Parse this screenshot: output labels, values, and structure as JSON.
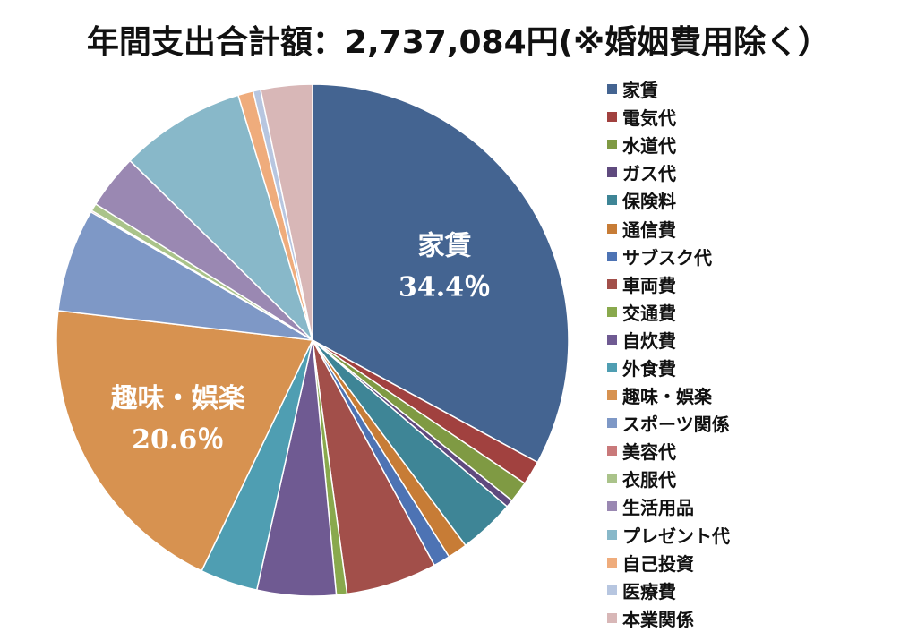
{
  "chart_data": {
    "type": "pie",
    "title": "年間支出合計額：2,737,084円(※婚姻費用除く）",
    "start_angle_deg": 0,
    "direction": "clockwise",
    "legend_position": "right",
    "slices": [
      {
        "name": "家賃",
        "percent": 34.4,
        "color": "#446491",
        "label": "家賃",
        "value_label": "34.4％"
      },
      {
        "name": "電気代",
        "percent": 1.6,
        "color": "#a1413f",
        "label": "",
        "value_label": ""
      },
      {
        "name": "水道代",
        "percent": 1.4,
        "color": "#7f9a43",
        "label": "",
        "value_label": ""
      },
      {
        "name": "ガス代",
        "percent": 0.5,
        "color": "#5f4a7e",
        "label": "",
        "value_label": ""
      },
      {
        "name": "保険料",
        "percent": 3.7,
        "color": "#3e8596",
        "label": "",
        "value_label": ""
      },
      {
        "name": "通信費",
        "percent": 1.3,
        "color": "#c77c36",
        "label": "",
        "value_label": ""
      },
      {
        "name": "サブスク代",
        "percent": 1.1,
        "color": "#4d73b4",
        "label": "",
        "value_label": ""
      },
      {
        "name": "車両費",
        "percent": 6.0,
        "color": "#a24f4a",
        "label": "",
        "value_label": ""
      },
      {
        "name": "交通費",
        "percent": 0.7,
        "color": "#89a94d",
        "label": "",
        "value_label": ""
      },
      {
        "name": "自炊費",
        "percent": 5.2,
        "color": "#6f5a92",
        "label": "",
        "value_label": ""
      },
      {
        "name": "外食費",
        "percent": 3.8,
        "color": "#4f9eb2",
        "label": "",
        "value_label": ""
      },
      {
        "name": "趣味・娯楽",
        "percent": 20.6,
        "color": "#d79250",
        "label": "趣味・娯楽",
        "value_label": "20.6％"
      },
      {
        "name": "スポーツ関係",
        "percent": 6.8,
        "color": "#7e98c6",
        "label": "",
        "value_label": ""
      },
      {
        "name": "美容代",
        "percent": 0.1,
        "color": "#c9797a",
        "label": "",
        "value_label": ""
      },
      {
        "name": "衣服代",
        "percent": 0.5,
        "color": "#aac38a",
        "label": "",
        "value_label": ""
      },
      {
        "name": "生活用品",
        "percent": 3.6,
        "color": "#9a88b2",
        "label": "",
        "value_label": ""
      },
      {
        "name": "プレゼント代",
        "percent": 8.3,
        "color": "#88b8c9",
        "label": "",
        "value_label": ""
      },
      {
        "name": "自己投資",
        "percent": 1.0,
        "color": "#efac7c",
        "label": "",
        "value_label": ""
      },
      {
        "name": "医療費",
        "percent": 0.5,
        "color": "#b7c6e0",
        "label": "",
        "value_label": ""
      },
      {
        "name": "本業関係",
        "percent": 3.4,
        "color": "#d8b7b7",
        "label": "",
        "value_label": ""
      }
    ]
  }
}
